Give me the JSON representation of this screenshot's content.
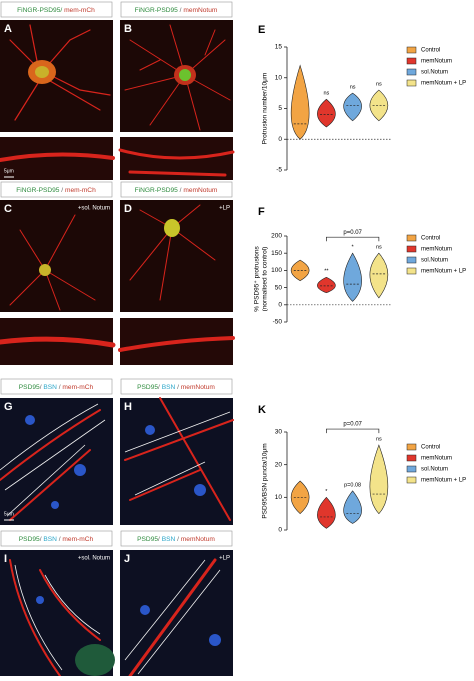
{
  "panels": [
    {
      "letter": "A",
      "label": [
        {
          "text": "FiNGR-PSD95/",
          "color": "#2e8b3e"
        },
        {
          "text": " mem-mCh",
          "color": "#c0392b"
        }
      ]
    },
    {
      "letter": "B",
      "label": [
        {
          "text": "FiNGR-PSD95",
          "color": "#2e8b3e"
        },
        {
          "text": " / ",
          "color": "#666666"
        },
        {
          "text": "memNotum",
          "color": "#c0392b"
        }
      ]
    },
    {
      "letter": "C",
      "label": [
        {
          "text": "FiNGR-PSD95",
          "color": "#2e8b3e"
        },
        {
          "text": " / ",
          "color": "#666666"
        },
        {
          "text": "mem-mCh",
          "color": "#c0392b"
        }
      ],
      "overlay": "+sol. Notum"
    },
    {
      "letter": "D",
      "label": [
        {
          "text": "FiNGR-PSD95",
          "color": "#2e8b3e"
        },
        {
          "text": " / ",
          "color": "#666666"
        },
        {
          "text": "memNotum",
          "color": "#c0392b"
        }
      ],
      "overlay": "+LP"
    },
    {
      "letter": "G",
      "label": [
        {
          "text": "PSD95",
          "color": "#2e8b3e"
        },
        {
          "text": "/ ",
          "color": "#666666"
        },
        {
          "text": "BSN",
          "color": "#2aa6c9"
        },
        {
          "text": " / ",
          "color": "#666666"
        },
        {
          "text": "mem-mCh",
          "color": "#c0392b"
        }
      ]
    },
    {
      "letter": "H",
      "label": [
        {
          "text": "PSD95",
          "color": "#2e8b3e"
        },
        {
          "text": "/ ",
          "color": "#666666"
        },
        {
          "text": "BSN",
          "color": "#2aa6c9"
        },
        {
          "text": " / ",
          "color": "#666666"
        },
        {
          "text": "memNotum",
          "color": "#c0392b"
        }
      ]
    },
    {
      "letter": "I",
      "label": [
        {
          "text": "PSD95",
          "color": "#2e8b3e"
        },
        {
          "text": "/ ",
          "color": "#666666"
        },
        {
          "text": "BSN",
          "color": "#2aa6c9"
        },
        {
          "text": " / ",
          "color": "#666666"
        },
        {
          "text": "mem-mCh",
          "color": "#c0392b"
        }
      ],
      "overlay": "+sol. Notum"
    },
    {
      "letter": "J",
      "label": [
        {
          "text": "PSD95",
          "color": "#2e8b3e"
        },
        {
          "text": "/ ",
          "color": "#666666"
        },
        {
          "text": "BSN",
          "color": "#2aa6c9"
        },
        {
          "text": " / ",
          "color": "#666666"
        },
        {
          "text": "memNotum",
          "color": "#c0392b"
        }
      ],
      "overlay": "+LP"
    }
  ],
  "scale_labels": [
    "5μm",
    "5μm"
  ],
  "chart_data": [
    {
      "type": "violin",
      "letter": "E",
      "ylabel": [
        "Protrusion number/10μm"
      ],
      "ylim": [
        -5,
        15
      ],
      "yticks": [
        -5,
        0,
        5,
        10,
        15
      ],
      "reference_line": 0,
      "series": [
        {
          "name": "Control",
          "color": "#f2a444",
          "min": 0,
          "max": 12,
          "median": 2.5
        },
        {
          "name": "memNotum",
          "color": "#e0362c",
          "min": 2,
          "max": 6.5,
          "median": 4,
          "annotation": "ns"
        },
        {
          "name": "sol.Notum",
          "color": "#6fa8dc",
          "min": 3,
          "max": 7.5,
          "median": 5.5,
          "annotation": "ns"
        },
        {
          "name": "memNotum + LP",
          "color": "#f3e38a",
          "min": 3,
          "max": 8,
          "median": 5.5,
          "annotation": "ns"
        }
      ]
    },
    {
      "type": "violin",
      "letter": "F",
      "ylabel": [
        "% PSD95⁺ protrusions",
        "(normalised to control)"
      ],
      "ylim": [
        -50,
        200
      ],
      "yticks": [
        -50,
        0,
        50,
        100,
        150,
        200
      ],
      "reference_line": 0,
      "bracket": "p=0.07",
      "series": [
        {
          "name": "Control",
          "color": "#f2a444",
          "min": 70,
          "max": 130,
          "median": 100
        },
        {
          "name": "memNotum",
          "color": "#e0362c",
          "min": 35,
          "max": 80,
          "median": 55,
          "annotation": "**"
        },
        {
          "name": "sol.Notum",
          "color": "#6fa8dc",
          "min": 10,
          "max": 150,
          "median": 60,
          "annotation": "*"
        },
        {
          "name": "memNotum + LP",
          "color": "#f3e38a",
          "min": 20,
          "max": 150,
          "median": 90,
          "annotation": "ns"
        }
      ]
    },
    {
      "type": "violin",
      "letter": "K",
      "ylabel": [
        "PSD95/BSN puncta/10μm"
      ],
      "ylim": [
        0,
        30
      ],
      "yticks": [
        0,
        10,
        20,
        30
      ],
      "bracket": "p=0.07",
      "series": [
        {
          "name": "Control",
          "color": "#f2a444",
          "min": 5,
          "max": 15,
          "median": 10
        },
        {
          "name": "memNotum",
          "color": "#e0362c",
          "min": 0.5,
          "max": 10,
          "median": 4,
          "annotation": "*"
        },
        {
          "name": "sol.Notum",
          "color": "#6fa8dc",
          "min": 2,
          "max": 12,
          "median": 5,
          "annotation": "p=0.08"
        },
        {
          "name": "memNotum + LP",
          "color": "#f3e38a",
          "min": 5,
          "max": 26,
          "median": 11,
          "annotation": "ns"
        }
      ]
    }
  ]
}
